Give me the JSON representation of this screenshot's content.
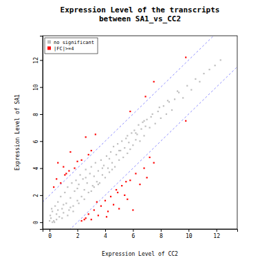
{
  "chart_data": {
    "type": "scatter",
    "title": "Expression Level of the transcripts\nbetween SA1_vs_CC2",
    "x_label": "Expression Level of CC2",
    "y_label": "Expression Level of SA1",
    "xlim": [
      -0.5,
      13.5
    ],
    "ylim": [
      -0.5,
      13.8
    ],
    "xticks": [
      0,
      2,
      4,
      6,
      8,
      10,
      12
    ],
    "yticks": [
      0,
      2,
      4,
      6,
      8,
      10,
      12
    ],
    "legend": "top-left",
    "lines": [
      {
        "slope": 1,
        "intercept": 2,
        "color": "#6f6fff",
        "line_style": "dashed"
      },
      {
        "slope": 1,
        "intercept": -2,
        "color": "#6f6fff",
        "line_style": "dashed"
      }
    ],
    "series": [
      {
        "name": "no significant",
        "color": "#bebebe",
        "marker": "square",
        "x": [
          0.1,
          0.2,
          0.3,
          0.4,
          0.5,
          0.6,
          0.7,
          0.8,
          0.9,
          1.0,
          1.1,
          1.2,
          1.3,
          1.4,
          1.5,
          1.6,
          1.7,
          1.8,
          1.9,
          2.0,
          2.1,
          2.2,
          2.3,
          2.4,
          2.5,
          2.6,
          2.7,
          2.8,
          2.9,
          3.0,
          3.1,
          3.2,
          3.3,
          3.4,
          3.5,
          3.6,
          3.7,
          3.8,
          3.9,
          4.0,
          4.1,
          4.2,
          4.3,
          4.4,
          4.5,
          4.6,
          4.7,
          4.8,
          4.9,
          5.0,
          5.1,
          5.2,
          5.3,
          5.4,
          5.5,
          5.6,
          5.7,
          5.8,
          5.9,
          6.0,
          6.1,
          6.2,
          6.3,
          6.4,
          6.5,
          6.6,
          6.7,
          6.8,
          6.9,
          7.0,
          7.2,
          7.4,
          7.6,
          7.8,
          8.0,
          8.2,
          8.4,
          8.6,
          8.8,
          9.0,
          9.3,
          9.6,
          9.9,
          10.2,
          10.5,
          10.8,
          11.1,
          11.5,
          11.9,
          12.3,
          0.2,
          0.5,
          0.9,
          1.3,
          1.7,
          2.1,
          2.5,
          3.0,
          3.5,
          4.5,
          0.0,
          0.05,
          0.15,
          0.35,
          0.6,
          1.0,
          1.5,
          2.0,
          2.6,
          3.2,
          3.8,
          4.3,
          5.0,
          5.6,
          6.2,
          6.8,
          7.3,
          7.9,
          8.5,
          9.2
        ],
        "values": [
          0.3,
          0.8,
          0.1,
          1.2,
          0.6,
          1.5,
          0.4,
          1.9,
          1.0,
          0.7,
          2.2,
          1.4,
          2.6,
          0.9,
          1.8,
          2.9,
          1.2,
          2.3,
          3.1,
          1.6,
          2.8,
          3.5,
          1.9,
          3.2,
          2.4,
          3.9,
          2.9,
          2.2,
          3.6,
          4.1,
          2.7,
          3.4,
          4.4,
          3.0,
          3.8,
          2.9,
          4.6,
          3.5,
          4.2,
          3.3,
          4.9,
          4.0,
          3.7,
          5.2,
          4.4,
          5.6,
          4.1,
          5.0,
          5.8,
          4.6,
          5.3,
          6.0,
          4.8,
          5.5,
          6.2,
          5.1,
          5.9,
          5.4,
          6.6,
          5.7,
          6.8,
          6.1,
          6.5,
          7.2,
          6.0,
          6.9,
          7.4,
          6.4,
          7.1,
          7.6,
          7.0,
          8.0,
          7.3,
          8.2,
          7.7,
          8.6,
          8.0,
          8.9,
          8.3,
          9.1,
          9.6,
          9.2,
          10.1,
          9.8,
          10.6,
          10.4,
          11.0,
          11.3,
          11.6,
          12.0,
          0.0,
          0.2,
          0.3,
          0.5,
          0.8,
          1.4,
          1.7,
          2.3,
          2.8,
          3.9,
          0.1,
          0.5,
          1.0,
          0.0,
          0.9,
          1.3,
          1.1,
          2.5,
          3.3,
          2.6,
          4.0,
          4.7,
          5.3,
          6.4,
          6.6,
          7.5,
          7.8,
          8.5,
          9.0,
          9.7
        ]
      },
      {
        "name": "|FC|>=4",
        "color": "#ff0000",
        "marker": "square",
        "x": [
          0.3,
          0.5,
          0.8,
          1.0,
          1.2,
          1.5,
          1.8,
          2.0,
          2.3,
          2.6,
          3.0,
          3.3,
          0.6,
          1.4,
          2.8,
          5.8,
          6.9,
          7.5,
          9.8,
          1.1,
          2.3,
          2.6,
          2.8,
          3.0,
          3.2,
          3.5,
          3.7,
          4.0,
          4.2,
          4.4,
          4.6,
          4.8,
          5.0,
          5.2,
          5.4,
          5.6,
          5.8,
          6.0,
          6.2,
          6.5,
          6.8,
          7.0,
          7.2,
          7.5,
          3.4,
          4.1,
          4.9,
          5.5,
          9.8,
          2.5
        ],
        "values": [
          2.6,
          3.2,
          2.9,
          4.1,
          3.6,
          5.2,
          4.0,
          4.5,
          4.6,
          6.3,
          5.3,
          6.5,
          4.4,
          3.8,
          5.0,
          8.2,
          9.3,
          10.4,
          12.2,
          3.5,
          0.1,
          0.3,
          0.6,
          0.2,
          0.9,
          0.5,
          1.2,
          1.6,
          0.8,
          1.9,
          1.3,
          2.4,
          1.0,
          2.7,
          2.0,
          1.7,
          3.1,
          0.9,
          3.6,
          2.8,
          4.0,
          3.3,
          4.8,
          4.4,
          1.5,
          0.4,
          2.2,
          3.0,
          7.5,
          0.2
        ]
      }
    ]
  }
}
